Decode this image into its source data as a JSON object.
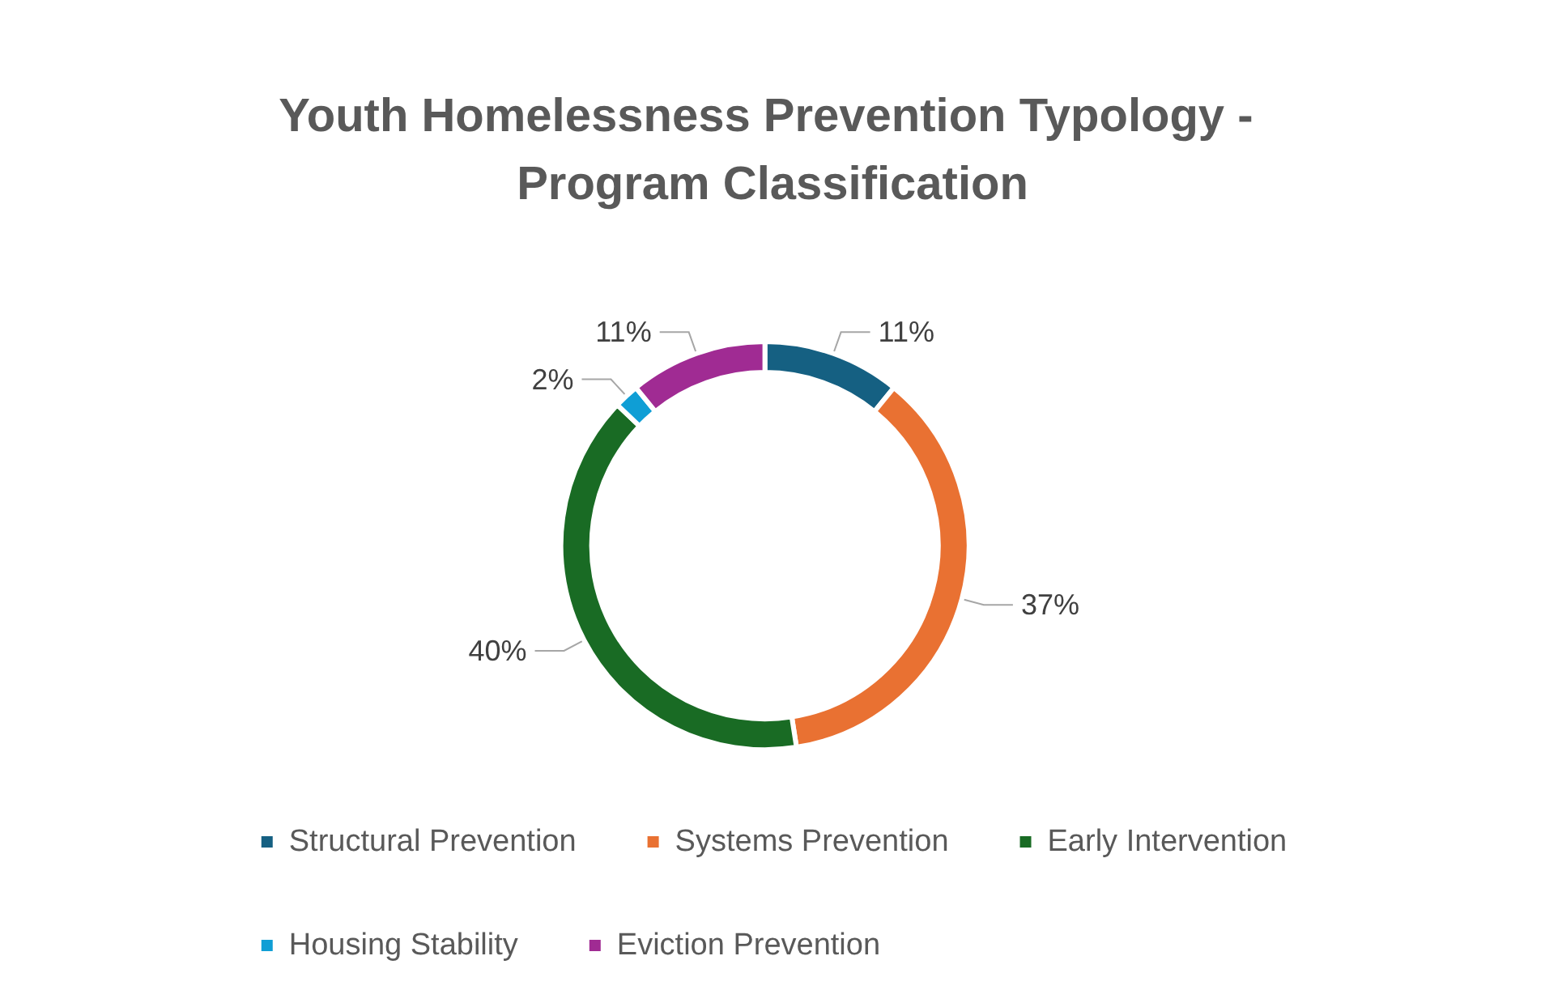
{
  "chart_data": {
    "type": "donut",
    "title": "Youth Homelessness Prevention Typology - Program Classification",
    "categories": [
      "Structural Prevention",
      "Systems Prevention",
      "Early Intervention",
      "Housing Stability",
      "Eviction Prevention"
    ],
    "values": [
      11,
      37,
      40,
      2,
      11
    ],
    "colors": [
      "#156082",
      "#e97132",
      "#196b24",
      "#0f9ed5",
      "#a02b93"
    ],
    "value_labels": [
      "11%",
      "37%",
      "40%",
      "2%",
      "11%"
    ],
    "legend": "bottom"
  }
}
